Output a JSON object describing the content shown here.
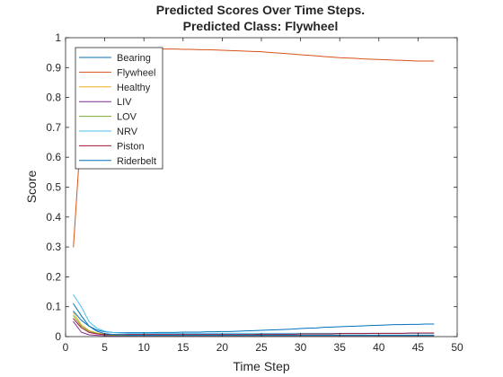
{
  "chart_data": {
    "type": "line",
    "title": [
      "Predicted Scores Over Time Steps.",
      "Predicted Class: Flywheel"
    ],
    "xlabel": "Time Step",
    "ylabel": "Score",
    "xlim": [
      0,
      50
    ],
    "ylim": [
      0,
      1
    ],
    "xticks": [
      0,
      5,
      10,
      15,
      20,
      25,
      30,
      35,
      40,
      45,
      50
    ],
    "yticks": [
      0,
      0.1,
      0.2,
      0.3,
      0.4,
      0.5,
      0.6,
      0.7,
      0.8,
      0.9,
      1
    ],
    "xtick_labels": [
      "0",
      "5",
      "10",
      "15",
      "20",
      "25",
      "30",
      "35",
      "40",
      "45",
      "50"
    ],
    "ytick_labels": [
      "0",
      "0.1",
      "0.2",
      "0.3",
      "0.4",
      "0.5",
      "0.6",
      "0.7",
      "0.8",
      "0.9",
      "1"
    ],
    "grid": false,
    "legend_position": "top-left",
    "x": [
      1,
      2,
      3,
      4,
      5,
      6,
      7,
      8,
      9,
      10,
      11,
      12,
      13,
      14,
      15,
      16,
      17,
      18,
      19,
      20,
      21,
      22,
      23,
      24,
      25,
      26,
      27,
      28,
      29,
      30,
      31,
      32,
      33,
      34,
      35,
      36,
      37,
      38,
      39,
      40,
      41,
      42,
      43,
      44,
      45,
      46,
      47
    ],
    "series": [
      {
        "name": "Bearing",
        "color": "#0072BD",
        "values": [
          0.085,
          0.055,
          0.035,
          0.022,
          0.016,
          0.014,
          0.013,
          0.013,
          0.013,
          0.013,
          0.013,
          0.014,
          0.014,
          0.014,
          0.015,
          0.015,
          0.015,
          0.016,
          0.016,
          0.017,
          0.017,
          0.018,
          0.019,
          0.02,
          0.021,
          0.022,
          0.023,
          0.024,
          0.025,
          0.027,
          0.028,
          0.029,
          0.031,
          0.032,
          0.033,
          0.034,
          0.035,
          0.036,
          0.037,
          0.038,
          0.039,
          0.04,
          0.04,
          0.041,
          0.041,
          0.042,
          0.042
        ]
      },
      {
        "name": "Flywheel",
        "color": "#D95319",
        "values": [
          0.3,
          0.7,
          0.88,
          0.93,
          0.95,
          0.958,
          0.962,
          0.963,
          0.963,
          0.963,
          0.963,
          0.962,
          0.962,
          0.962,
          0.961,
          0.961,
          0.96,
          0.96,
          0.959,
          0.958,
          0.957,
          0.956,
          0.955,
          0.954,
          0.953,
          0.951,
          0.949,
          0.947,
          0.945,
          0.943,
          0.941,
          0.939,
          0.937,
          0.935,
          0.933,
          0.932,
          0.931,
          0.929,
          0.928,
          0.927,
          0.926,
          0.925,
          0.924,
          0.923,
          0.922,
          0.922,
          0.922
        ]
      },
      {
        "name": "Healthy",
        "color": "#EDB120",
        "values": [
          0.08,
          0.04,
          0.02,
          0.012,
          0.008,
          0.006,
          0.005,
          0.005,
          0.004,
          0.004,
          0.004,
          0.004,
          0.004,
          0.004,
          0.004,
          0.004,
          0.004,
          0.004,
          0.004,
          0.004,
          0.004,
          0.004,
          0.004,
          0.004,
          0.004,
          0.004,
          0.004,
          0.004,
          0.004,
          0.004,
          0.004,
          0.004,
          0.004,
          0.004,
          0.004,
          0.004,
          0.004,
          0.004,
          0.004,
          0.004,
          0.004,
          0.004,
          0.004,
          0.004,
          0.004,
          0.004,
          0.004
        ]
      },
      {
        "name": "LIV",
        "color": "#7E2F8E",
        "values": [
          0.05,
          0.015,
          0.006,
          0.004,
          0.003,
          0.003,
          0.003,
          0.003,
          0.003,
          0.003,
          0.003,
          0.003,
          0.003,
          0.003,
          0.003,
          0.003,
          0.003,
          0.003,
          0.003,
          0.003,
          0.003,
          0.003,
          0.003,
          0.003,
          0.003,
          0.003,
          0.003,
          0.003,
          0.003,
          0.003,
          0.003,
          0.003,
          0.003,
          0.003,
          0.003,
          0.003,
          0.003,
          0.003,
          0.003,
          0.003,
          0.003,
          0.003,
          0.003,
          0.003,
          0.003,
          0.003,
          0.003
        ]
      },
      {
        "name": "LOV",
        "color": "#77AC30",
        "values": [
          0.07,
          0.035,
          0.018,
          0.01,
          0.006,
          0.005,
          0.004,
          0.004,
          0.004,
          0.004,
          0.004,
          0.004,
          0.004,
          0.004,
          0.004,
          0.004,
          0.004,
          0.004,
          0.004,
          0.004,
          0.004,
          0.004,
          0.004,
          0.004,
          0.004,
          0.004,
          0.004,
          0.004,
          0.004,
          0.004,
          0.004,
          0.004,
          0.004,
          0.004,
          0.004,
          0.004,
          0.004,
          0.004,
          0.004,
          0.004,
          0.004,
          0.004,
          0.004,
          0.004,
          0.004,
          0.004,
          0.004
        ]
      },
      {
        "name": "NRV",
        "color": "#4DBEEE",
        "values": [
          0.14,
          0.1,
          0.05,
          0.028,
          0.018,
          0.014,
          0.012,
          0.011,
          0.011,
          0.011,
          0.011,
          0.011,
          0.011,
          0.011,
          0.011,
          0.011,
          0.011,
          0.011,
          0.011,
          0.011,
          0.011,
          0.011,
          0.011,
          0.011,
          0.011,
          0.011,
          0.011,
          0.011,
          0.011,
          0.011,
          0.011,
          0.011,
          0.011,
          0.011,
          0.011,
          0.011,
          0.011,
          0.011,
          0.011,
          0.011,
          0.011,
          0.011,
          0.011,
          0.011,
          0.011,
          0.011,
          0.011
        ]
      },
      {
        "name": "Piston",
        "color": "#A2142F",
        "values": [
          0.06,
          0.03,
          0.014,
          0.009,
          0.007,
          0.007,
          0.007,
          0.007,
          0.007,
          0.007,
          0.007,
          0.007,
          0.007,
          0.007,
          0.007,
          0.007,
          0.007,
          0.007,
          0.007,
          0.007,
          0.007,
          0.007,
          0.007,
          0.007,
          0.008,
          0.008,
          0.008,
          0.008,
          0.008,
          0.009,
          0.009,
          0.009,
          0.009,
          0.009,
          0.01,
          0.01,
          0.01,
          0.01,
          0.011,
          0.011,
          0.011,
          0.011,
          0.011,
          0.012,
          0.012,
          0.012,
          0.012
        ]
      },
      {
        "name": "Riderbelt",
        "color": "#0072BD",
        "values": [
          0.11,
          0.07,
          0.035,
          0.018,
          0.01,
          0.007,
          0.006,
          0.005,
          0.005,
          0.005,
          0.005,
          0.005,
          0.005,
          0.005,
          0.005,
          0.005,
          0.005,
          0.005,
          0.005,
          0.005,
          0.005,
          0.005,
          0.005,
          0.005,
          0.005,
          0.005,
          0.005,
          0.005,
          0.005,
          0.005,
          0.005,
          0.005,
          0.005,
          0.005,
          0.005,
          0.005,
          0.005,
          0.005,
          0.005,
          0.005,
          0.005,
          0.005,
          0.005,
          0.005,
          0.005,
          0.005,
          0.005
        ]
      }
    ]
  }
}
